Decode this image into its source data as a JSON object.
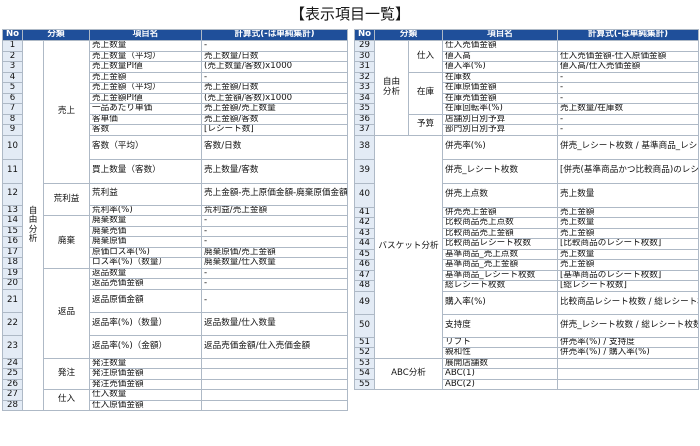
{
  "title": "【表示項目一覧】",
  "headers": {
    "no": "No",
    "category": "分類",
    "item": "項目名",
    "formula": "計算式(-は単純集計)"
  },
  "left_table": {
    "category_main": "自由\n分析",
    "groups": [
      {
        "name": "売上",
        "rows": [
          {
            "no": "1",
            "item": "売上数量",
            "formula": "-"
          },
          {
            "no": "2",
            "item": "売上数量（平均）",
            "formula": "売上数量/日数"
          },
          {
            "no": "3",
            "item": "売上数量PI値",
            "formula": "(売上数量/客数)x1000"
          },
          {
            "no": "4",
            "item": "売上金額",
            "formula": "-"
          },
          {
            "no": "5",
            "item": "売上金額（平均）",
            "formula": "売上金額/日数"
          },
          {
            "no": "6",
            "item": "売上金額PI値",
            "formula": "(売上金額/客数)x1000"
          },
          {
            "no": "7",
            "item": "一品あたり単価",
            "formula": "売上金額/売上数量"
          },
          {
            "no": "8",
            "item": "客単価",
            "formula": "売上金額/客数"
          },
          {
            "no": "9",
            "item": "客数",
            "formula": "[レシート数]"
          },
          {
            "no": "10",
            "item": "客数（平均）",
            "formula": "客数/日数"
          },
          {
            "no": "11",
            "item": "買上数量（客数）",
            "formula": "売上数量/客数"
          }
        ]
      },
      {
        "name": "荒利益",
        "rows": [
          {
            "no": "12",
            "item": "荒利益",
            "formula": "売上金額-売上原価金額-廃棄原価金額"
          },
          {
            "no": "13",
            "item": "荒利率(%)",
            "formula": "荒利益/売上金額"
          }
        ]
      },
      {
        "name": "廃棄",
        "rows": [
          {
            "no": "14",
            "item": "廃棄数量",
            "formula": "-"
          },
          {
            "no": "15",
            "item": "廃棄売価",
            "formula": "-"
          },
          {
            "no": "16",
            "item": "廃棄原価",
            "formula": "-"
          },
          {
            "no": "17",
            "item": "原価ロス率(%)",
            "formula": "廃棄原価/売上金額"
          },
          {
            "no": "18",
            "item": "ロス率(%)（数量）",
            "formula": "廃棄数量/仕入数量"
          }
        ]
      },
      {
        "name": "返品",
        "rows": [
          {
            "no": "19",
            "item": "返品数量",
            "formula": "-"
          },
          {
            "no": "20",
            "item": "返品売価金額",
            "formula": "-"
          },
          {
            "no": "21",
            "item": "返品原価金額",
            "formula": "-"
          },
          {
            "no": "22",
            "item": "返品率(%)（数量）",
            "formula": "返品数量/仕入数量"
          },
          {
            "no": "23",
            "item": "返品率(%)（金額）",
            "formula": "返品売価金額/仕入売価金額"
          }
        ]
      },
      {
        "name": "発注",
        "rows": [
          {
            "no": "24",
            "item": "発注数量",
            "formula": ""
          },
          {
            "no": "25",
            "item": "発注原価金額",
            "formula": ""
          },
          {
            "no": "26",
            "item": "発注売価金額",
            "formula": ""
          }
        ]
      },
      {
        "name": "仕入",
        "rows": [
          {
            "no": "27",
            "item": "仕入数量",
            "formula": ""
          },
          {
            "no": "28",
            "item": "仕入原価金額",
            "formula": ""
          }
        ]
      }
    ]
  },
  "right_table": {
    "category_free": "自由\n分析",
    "category_basket": "バスケット分析",
    "category_abc": "ABC分析",
    "groups": [
      {
        "name": "仕入",
        "rows": [
          {
            "no": "29",
            "item": "仕入売価金額",
            "formula": ""
          },
          {
            "no": "30",
            "item": "値入高",
            "formula": "仕入売価金額-仕入原価金額"
          },
          {
            "no": "31",
            "item": "値入率(%)",
            "formula": "値入高/仕入売価金額"
          }
        ]
      },
      {
        "name": "在庫",
        "rows": [
          {
            "no": "32",
            "item": "在庫数",
            "formula": "-"
          },
          {
            "no": "33",
            "item": "在庫原価金額",
            "formula": "-"
          },
          {
            "no": "34",
            "item": "在庫売価金額",
            "formula": "-"
          },
          {
            "no": "35",
            "item": "在庫回転率(%)",
            "formula": "売上数量/在庫数"
          }
        ]
      },
      {
        "name": "予算",
        "rows": [
          {
            "no": "36",
            "item": "店舗別日別予算",
            "formula": "-"
          },
          {
            "no": "37",
            "item": "部門別日別予算",
            "formula": "-"
          }
        ]
      }
    ],
    "basket_rows": [
      {
        "no": "38",
        "item": "併売率(%)",
        "formula": "併売_レシート枚数 / 基準商品_レシート枚数"
      },
      {
        "no": "39",
        "item": "併売_レシート枚数",
        "formula": "[併売(基準商品かつ比較商品)のレシート枚数]"
      },
      {
        "no": "40",
        "item": "併売上点数",
        "formula": "売上数量"
      },
      {
        "no": "41",
        "item": "併売売上金額",
        "formula": "売上金額"
      },
      {
        "no": "42",
        "item": "比較商品売上点数",
        "formula": "売上数量"
      },
      {
        "no": "43",
        "item": "比較商品売上金額",
        "formula": "売上金額"
      },
      {
        "no": "44",
        "item": "比較商品レシート枚数",
        "formula": "[比較商品のレシート枚数]"
      },
      {
        "no": "45",
        "item": "基準商品_売上点数",
        "formula": "売上数量"
      },
      {
        "no": "46",
        "item": "基準商品_売上金額",
        "formula": "売上金額"
      },
      {
        "no": "47",
        "item": "基準商品_レシート枚数",
        "formula": "[基準商品のレシート枚数]"
      },
      {
        "no": "48",
        "item": "総レシート枚数",
        "formula": "[総レシート枚数]"
      },
      {
        "no": "49",
        "item": "購入率(%)",
        "formula": "比較商品レシート枚数 / 総レシート枚数"
      },
      {
        "no": "50",
        "item": "支持度",
        "formula": "併売_レシート枚数 / 総レシート枚数"
      },
      {
        "no": "51",
        "item": "リフト",
        "formula": "併売率(%) / 支持度"
      },
      {
        "no": "52",
        "item": "親和性",
        "formula": "併売率(%) / 購入率(%)"
      }
    ],
    "abc_rows": [
      {
        "no": "53",
        "item": "展開店舗数",
        "formula": ""
      },
      {
        "no": "54",
        "item": "ABC(1)",
        "formula": ""
      },
      {
        "no": "55",
        "item": "ABC(2)",
        "formula": ""
      }
    ]
  }
}
